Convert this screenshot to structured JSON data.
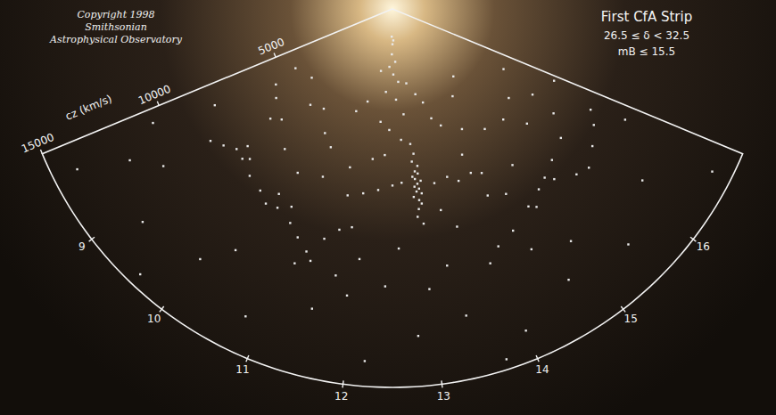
{
  "chart_data": {
    "type": "scatter",
    "title": "First CfA Strip",
    "annotations": [
      "26.5 ≤ δ < 32.5",
      "mB ≤ 15.5",
      "Copyright 1998",
      "Smithsonian",
      "Astrophysical Observatory"
    ],
    "y_label": "cz (km/s)",
    "xlim": [
      8,
      17
    ],
    "xticks": [
      9,
      10,
      11,
      12,
      13,
      14,
      15,
      16
    ],
    "ylim": [
      0,
      15000
    ],
    "yticks": [
      5000,
      10000,
      15000
    ],
    "color": "#e8e8e8",
    "marker": "square",
    "grid": false,
    "x": [
      12.4,
      12.5,
      12.6,
      12.45,
      12.7,
      12.3,
      12.55,
      12.8,
      12.2,
      12.65,
      11.8,
      13.2,
      11.5,
      13.5,
      12.9,
      12.1,
      12.4,
      12.75,
      11.2,
      13.8,
      13.0,
      13.05,
      12.98,
      13.1,
      13.02,
      13.08,
      12.95,
      13.0,
      13.12,
      13.04,
      12.97,
      13.06,
      13.0,
      13.1,
      12.93,
      13.03,
      13.07,
      13.0,
      12.96,
      13.05,
      12.5,
      12.7,
      12.2,
      13.4,
      13.7,
      13.9,
      14.2,
      14.4,
      11.9,
      11.6,
      11.8,
      11.6,
      11.4,
      11.2,
      11.0,
      10.8,
      10.5,
      10.3,
      10.1,
      9.8,
      9.5,
      9.3,
      9.1,
      8.9,
      11.3,
      11.1,
      10.7,
      10.4,
      9.6,
      9.4,
      9.3,
      9.5,
      9.0,
      8.7,
      9.8,
      10.2,
      10.6,
      10.9,
      9.2,
      8.6,
      14.1,
      14.4,
      14.8,
      15.1,
      15.4,
      15.7,
      15.9,
      16.2,
      16.5,
      16.7,
      14.9,
      15.3,
      15.6,
      16.0,
      14.6,
      14.3,
      15.0,
      16.3,
      16.8,
      14.5,
      14.0,
      14.5,
      15.0,
      15.5,
      16.0,
      14.8,
      15.3,
      13.7,
      16.4,
      15.8,
      8.5,
      9.2,
      10.0,
      10.8,
      11.5,
      12.2,
      12.8,
      13.4,
      14.0,
      14.7,
      15.5,
      16.2,
      16.7,
      9.6,
      11.9,
      13.0,
      13.7,
      15.0,
      10.3,
      8.3,
      10.0,
      10.5,
      11.0,
      11.5,
      12.0,
      12.3,
      13.4,
      13.6,
      12.6,
      12.0,
      13.3,
      13.9,
      12.4,
      11.7,
      8.4,
      8.2,
      8.8,
      16.9,
      16.6,
      14.2
    ],
    "values": [
      1100,
      1400,
      1250,
      1800,
      2100,
      2300,
      2600,
      2900,
      3300,
      3600,
      2500,
      3000,
      3800,
      3500,
      4200,
      4500,
      4800,
      5200,
      4300,
      4600,
      5400,
      5800,
      6100,
      6300,
      6500,
      6600,
      6700,
      6800,
      6900,
      7000,
      7100,
      7200,
      7300,
      7400,
      7500,
      7650,
      7800,
      8000,
      8300,
      8600,
      7000,
      6900,
      7200,
      7100,
      7000,
      7300,
      7200,
      7400,
      7400,
      7600,
      8800,
      9000,
      9500,
      10200,
      9800,
      9400,
      9100,
      9200,
      8900,
      8700,
      8400,
      8300,
      8600,
      8900,
      10500,
      10800,
      8800,
      8600,
      8200,
      7900,
      6500,
      6200,
      5800,
      5500,
      5000,
      4800,
      5600,
      6000,
      4200,
      4500,
      10300,
      10000,
      9500,
      9200,
      9300,
      9800,
      10000,
      9600,
      9200,
      8800,
      9700,
      9000,
      8700,
      8400,
      8600,
      8300,
      7800,
      7600,
      10200,
      11000,
      5000,
      5500,
      6000,
      6200,
      5800,
      4200,
      3600,
      3900,
      6500,
      7000,
      12000,
      13000,
      12500,
      13500,
      12300,
      14000,
      13000,
      12500,
      13800,
      12800,
      13200,
      12000,
      14200,
      14500,
      11500,
      11200,
      14600,
      11600,
      11400,
      14000,
      7000,
      7500,
      7200,
      6500,
      6000,
      5800,
      8200,
      9000,
      9500,
      10000,
      10400,
      10800,
      11000,
      10800,
      8000,
      10500,
      11000,
      7000,
      5000,
      6400
    ]
  }
}
